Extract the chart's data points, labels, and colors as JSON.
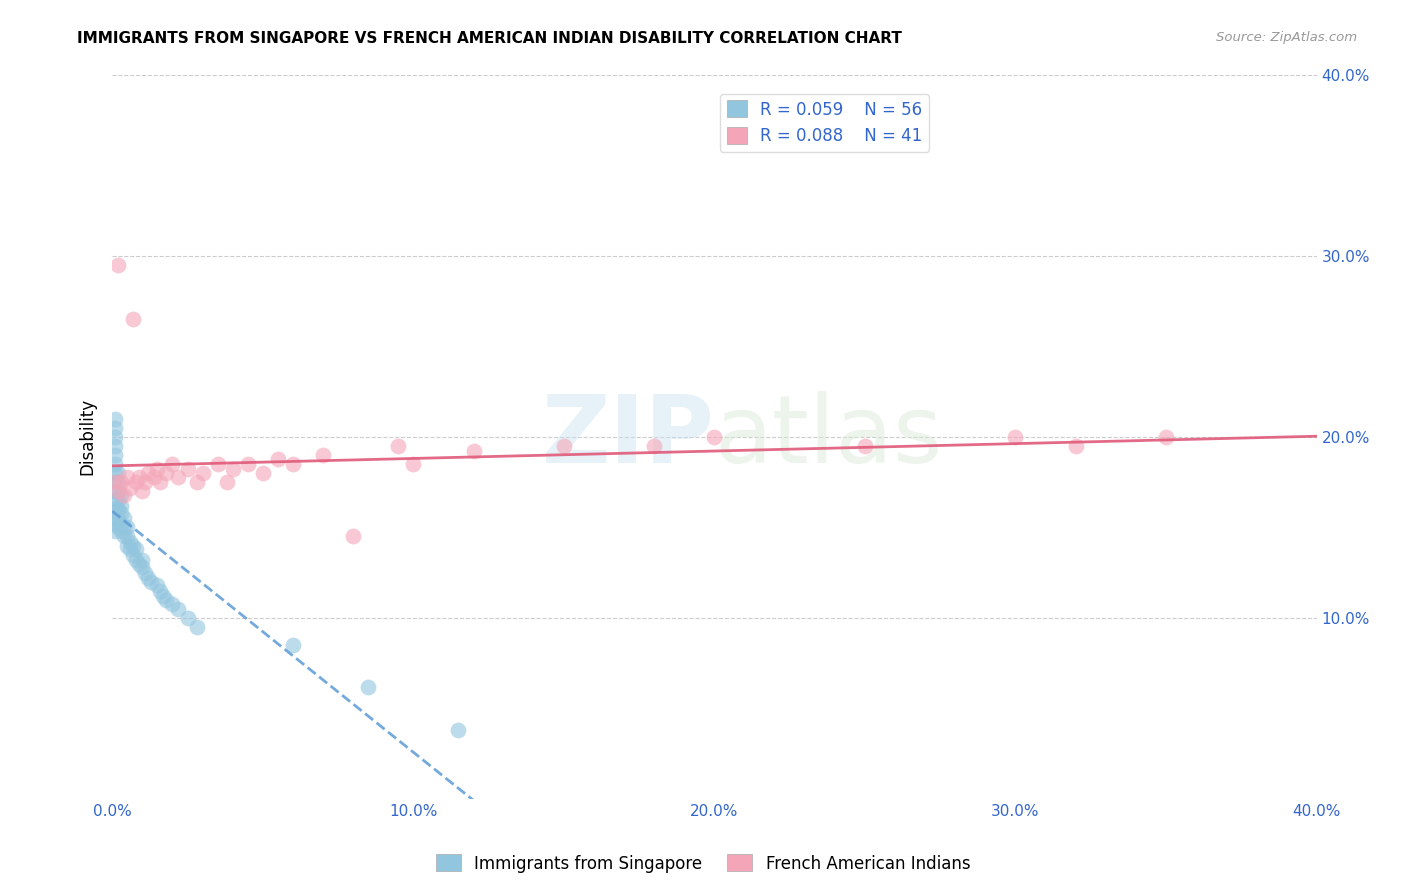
{
  "title": "IMMIGRANTS FROM SINGAPORE VS FRENCH AMERICAN INDIAN DISABILITY CORRELATION CHART",
  "source": "Source: ZipAtlas.com",
  "ylabel": "Disability",
  "xlim": [
    0.0,
    0.4
  ],
  "ylim": [
    0.0,
    0.4
  ],
  "xtick_labels": [
    "0.0%",
    "10.0%",
    "20.0%",
    "30.0%",
    "40.0%"
  ],
  "ytick_labels": [
    "10.0%",
    "20.0%",
    "30.0%",
    "40.0%"
  ],
  "legend_r1": "R = 0.059",
  "legend_n1": "N = 56",
  "legend_r2": "R = 0.088",
  "legend_n2": "N = 41",
  "color_blue": "#92c5de",
  "color_pink": "#f4a6b8",
  "line_blue": "#5b9bd5",
  "line_pink": "#e05a7a",
  "background": "#ffffff",
  "watermark_zip": "ZIP",
  "watermark_atlas": "atlas",
  "singapore_x": [
    0.001,
    0.001,
    0.001,
    0.001,
    0.001,
    0.001,
    0.001,
    0.001,
    0.001,
    0.001,
    0.001,
    0.001,
    0.001,
    0.001,
    0.001,
    0.002,
    0.002,
    0.002,
    0.002,
    0.002,
    0.002,
    0.002,
    0.003,
    0.003,
    0.003,
    0.003,
    0.003,
    0.004,
    0.004,
    0.004,
    0.005,
    0.005,
    0.005,
    0.006,
    0.006,
    0.007,
    0.007,
    0.008,
    0.008,
    0.009,
    0.01,
    0.01,
    0.011,
    0.012,
    0.013,
    0.015,
    0.016,
    0.017,
    0.018,
    0.02,
    0.022,
    0.025,
    0.028,
    0.06,
    0.085,
    0.115
  ],
  "singapore_y": [
    0.155,
    0.16,
    0.165,
    0.17,
    0.175,
    0.18,
    0.185,
    0.19,
    0.195,
    0.2,
    0.205,
    0.21,
    0.148,
    0.152,
    0.158,
    0.15,
    0.155,
    0.16,
    0.165,
    0.17,
    0.175,
    0.18,
    0.148,
    0.152,
    0.158,
    0.162,
    0.168,
    0.145,
    0.15,
    0.155,
    0.14,
    0.145,
    0.15,
    0.138,
    0.142,
    0.135,
    0.14,
    0.132,
    0.138,
    0.13,
    0.128,
    0.132,
    0.125,
    0.122,
    0.12,
    0.118,
    0.115,
    0.112,
    0.11,
    0.108,
    0.105,
    0.1,
    0.095,
    0.085,
    0.062,
    0.038
  ],
  "french_x": [
    0.001,
    0.002,
    0.002,
    0.003,
    0.004,
    0.005,
    0.006,
    0.007,
    0.008,
    0.009,
    0.01,
    0.011,
    0.012,
    0.014,
    0.015,
    0.016,
    0.018,
    0.02,
    0.022,
    0.025,
    0.028,
    0.03,
    0.035,
    0.038,
    0.04,
    0.045,
    0.05,
    0.055,
    0.06,
    0.07,
    0.08,
    0.095,
    0.1,
    0.12,
    0.15,
    0.18,
    0.2,
    0.25,
    0.3,
    0.32,
    0.35
  ],
  "french_y": [
    0.175,
    0.17,
    0.295,
    0.175,
    0.168,
    0.178,
    0.172,
    0.265,
    0.175,
    0.178,
    0.17,
    0.175,
    0.18,
    0.178,
    0.182,
    0.175,
    0.18,
    0.185,
    0.178,
    0.182,
    0.175,
    0.18,
    0.185,
    0.175,
    0.182,
    0.185,
    0.18,
    0.188,
    0.185,
    0.19,
    0.145,
    0.195,
    0.185,
    0.192,
    0.195,
    0.195,
    0.2,
    0.195,
    0.2,
    0.195,
    0.2
  ]
}
